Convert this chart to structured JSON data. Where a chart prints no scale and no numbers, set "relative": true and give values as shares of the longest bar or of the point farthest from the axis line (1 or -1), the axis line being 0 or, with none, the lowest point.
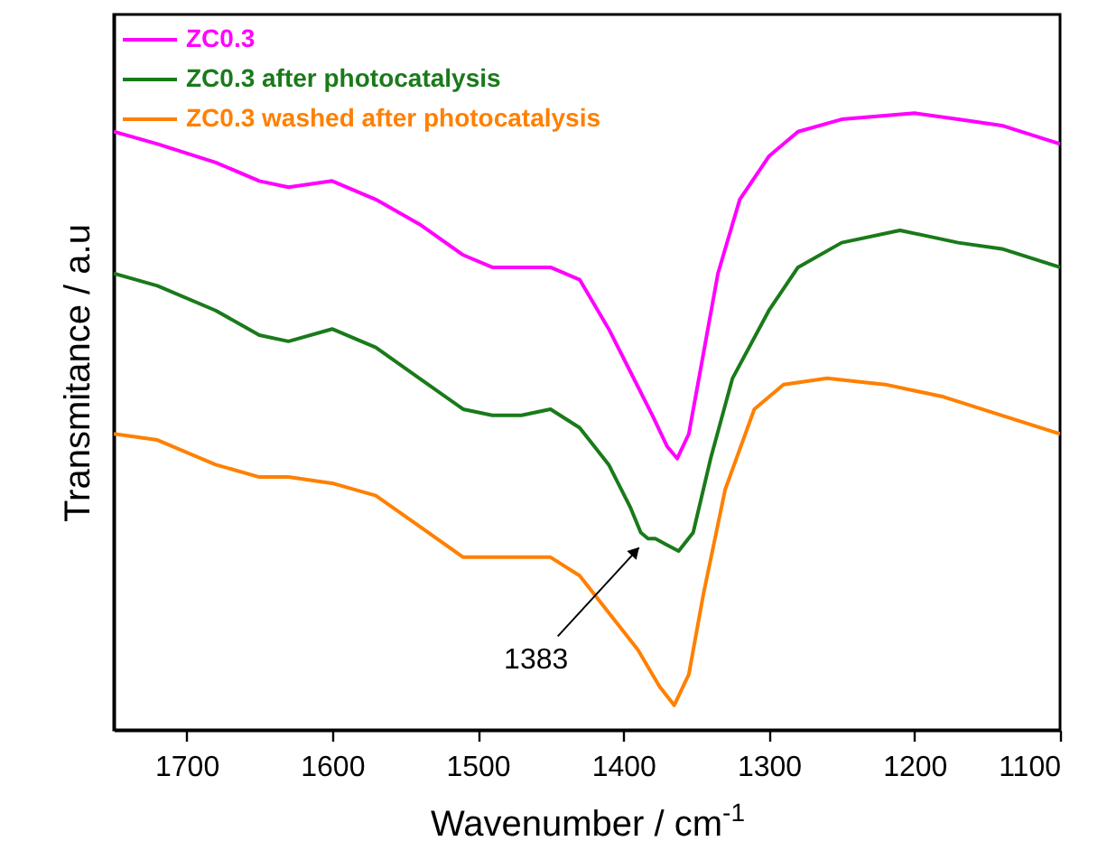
{
  "chart_data": {
    "type": "line",
    "relative": true,
    "xlabel": "Wavenumber / cm$^{-1}$",
    "ylabel": "Transmitance / a.u",
    "xlim": [
      1750,
      1100
    ],
    "xticks": [
      1700,
      1600,
      1500,
      1400,
      1300,
      1200,
      1100
    ],
    "legend": "top left",
    "annotations": [
      {
        "text": "1383",
        "x": 1383,
        "y": 0.31
      }
    ],
    "series": [
      {
        "name": "ZC0.3",
        "color": "#ff00ff",
        "x": [
          1750,
          1720,
          1680,
          1650,
          1630,
          1600,
          1570,
          1540,
          1510,
          1490,
          1470,
          1450,
          1430,
          1410,
          1395,
          1380,
          1370,
          1363,
          1355,
          1345,
          1335,
          1320,
          1300,
          1280,
          1250,
          1200,
          1170,
          1140,
          1100
        ],
        "values": [
          0.97,
          0.95,
          0.92,
          0.89,
          0.88,
          0.89,
          0.86,
          0.82,
          0.77,
          0.75,
          0.75,
          0.75,
          0.73,
          0.65,
          0.58,
          0.51,
          0.46,
          0.44,
          0.48,
          0.61,
          0.74,
          0.86,
          0.93,
          0.97,
          0.99,
          1,
          0.99,
          0.98,
          0.95
        ]
      },
      {
        "name": "ZC0.3 after photocatalysis",
        "color": "#1a7a1a",
        "x": [
          1750,
          1720,
          1680,
          1650,
          1630,
          1600,
          1570,
          1540,
          1510,
          1490,
          1470,
          1450,
          1430,
          1410,
          1395,
          1388,
          1383,
          1378,
          1370,
          1362,
          1352,
          1340,
          1325,
          1300,
          1280,
          1250,
          1210,
          1170,
          1140,
          1100
        ],
        "values": [
          0.74,
          0.72,
          0.68,
          0.64,
          0.63,
          0.65,
          0.62,
          0.57,
          0.52,
          0.51,
          0.51,
          0.52,
          0.49,
          0.43,
          0.36,
          0.32,
          0.31,
          0.31,
          0.3,
          0.29,
          0.32,
          0.44,
          0.57,
          0.68,
          0.75,
          0.79,
          0.81,
          0.79,
          0.78,
          0.75
        ]
      },
      {
        "name": "ZC0.3 washed after photocatalysis",
        "color": "#ff8000",
        "x": [
          1750,
          1720,
          1680,
          1650,
          1630,
          1600,
          1570,
          1540,
          1510,
          1490,
          1470,
          1450,
          1430,
          1410,
          1390,
          1375,
          1365,
          1355,
          1345,
          1330,
          1310,
          1290,
          1260,
          1220,
          1180,
          1140,
          1100
        ],
        "values": [
          0.48,
          0.47,
          0.43,
          0.41,
          0.41,
          0.4,
          0.38,
          0.33,
          0.28,
          0.28,
          0.28,
          0.28,
          0.25,
          0.19,
          0.13,
          0.07,
          0.04,
          0.09,
          0.22,
          0.39,
          0.52,
          0.56,
          0.57,
          0.56,
          0.54,
          0.51,
          0.48
        ]
      }
    ]
  }
}
